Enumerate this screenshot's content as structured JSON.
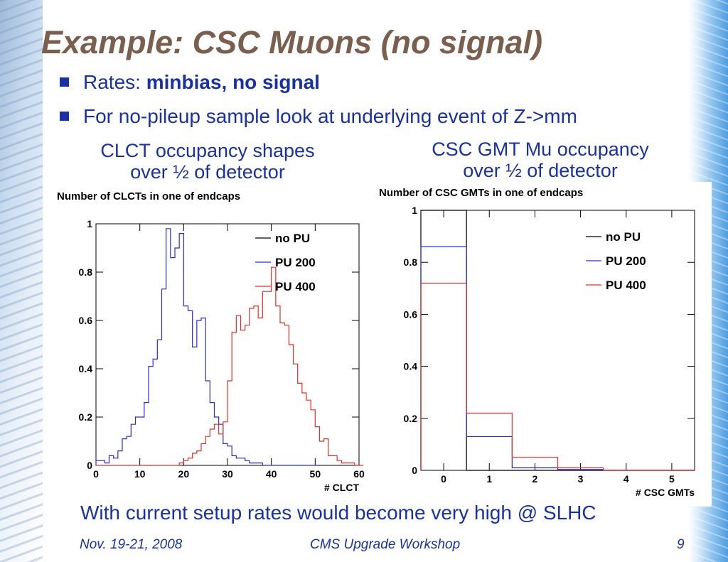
{
  "slide": {
    "title": "Example: CSC Muons (no signal)",
    "bullets": [
      {
        "prefix": "Rates: ",
        "bold": "minbias, no signal"
      },
      {
        "prefix": "For no-pileup sample look at underlying event of Z->mm",
        "bold": ""
      }
    ],
    "left_caption_line1": "CLCT occupancy shapes",
    "left_caption_line2": "over ½ of detector",
    "right_caption_line1": "CSC GMT Mu occupancy",
    "right_caption_line2": "over ½ of detector",
    "conclusion": "With current setup rates would become very high @ SLHC",
    "footer": {
      "date": "Nov. 19-21, 2008",
      "event": "CMS Upgrade Workshop",
      "page": "9"
    }
  },
  "colors": {
    "text_blue": "#1a31a6",
    "title_brown": "#7a5f4f",
    "no_pu": "#000000",
    "pu200": "#2b2bd8",
    "pu400": "#e0302b"
  },
  "chart_data": [
    {
      "type": "line",
      "title": "Number of CLCTs in one of endcaps",
      "xlabel": "# CLCT",
      "ylabel": "",
      "xlim": [
        0,
        60
      ],
      "ylim": [
        0,
        1
      ],
      "x_ticks": [
        0,
        10,
        20,
        30,
        40,
        50,
        60
      ],
      "y_ticks": [
        0,
        0.2,
        0.4,
        0.6,
        0.8,
        1
      ],
      "bin_width": 1,
      "series": [
        {
          "name": "no PU",
          "color": "#000000",
          "bin_start": [],
          "values": []
        },
        {
          "name": "PU 200",
          "color": "#2b2bd8",
          "bin_start": 0,
          "values": [
            0.02,
            0.02,
            0.01,
            0.04,
            0.03,
            0.06,
            0.11,
            0.12,
            0.17,
            0.2,
            0.2,
            0.26,
            0.41,
            0.44,
            0.52,
            0.73,
            0.98,
            0.86,
            0.9,
            0.96,
            0.66,
            0.64,
            0.49,
            0.6,
            0.61,
            0.35,
            0.26,
            0.2,
            0.17,
            0.09,
            0.08,
            0.04,
            0.03,
            0.03,
            0.02,
            0.01,
            0.01,
            0.01,
            0,
            0,
            0,
            0,
            0,
            0,
            0,
            0,
            0,
            0,
            0,
            0
          ]
        },
        {
          "name": "PU 400",
          "color": "#e0302b",
          "bin_start": 0,
          "values": [
            0,
            0,
            0,
            0,
            0,
            0,
            0,
            0,
            0,
            0,
            0,
            0,
            0,
            0,
            0,
            0,
            0,
            0,
            0,
            0.01,
            0.02,
            0.03,
            0.05,
            0.06,
            0.09,
            0.12,
            0.15,
            0.17,
            0.13,
            0.18,
            0.35,
            0.55,
            0.62,
            0.56,
            0.58,
            0.65,
            0.66,
            0.61,
            0.72,
            0.72,
            0.82,
            0.66,
            0.59,
            0.58,
            0.5,
            0.42,
            0.34,
            0.3,
            0.27,
            0.23,
            0.16,
            0.1,
            0.11,
            0.04,
            0.04,
            0.02,
            0.01,
            0.01,
            0.01,
            0,
            0
          ]
        }
      ]
    },
    {
      "type": "line",
      "title": "Number of CSC GMTs in one of endcaps",
      "xlabel": "# CSC GMTs",
      "ylabel": "",
      "xlim": [
        -0.5,
        5.5
      ],
      "ylim": [
        0,
        1
      ],
      "x_ticks": [
        0,
        1,
        2,
        3,
        4,
        5
      ],
      "y_ticks": [
        0,
        0.2,
        0.4,
        0.6,
        0.8,
        1
      ],
      "series": [
        {
          "name": "no PU",
          "color": "#000000",
          "values": [
            1.0,
            0,
            0,
            0,
            0,
            0
          ]
        },
        {
          "name": "PU 200",
          "color": "#2b2bd8",
          "values": [
            0.86,
            0.13,
            0.01,
            0.003,
            0,
            0
          ]
        },
        {
          "name": "PU 400",
          "color": "#e0302b",
          "values": [
            0.72,
            0.22,
            0.05,
            0.01,
            0,
            0
          ]
        }
      ]
    }
  ]
}
